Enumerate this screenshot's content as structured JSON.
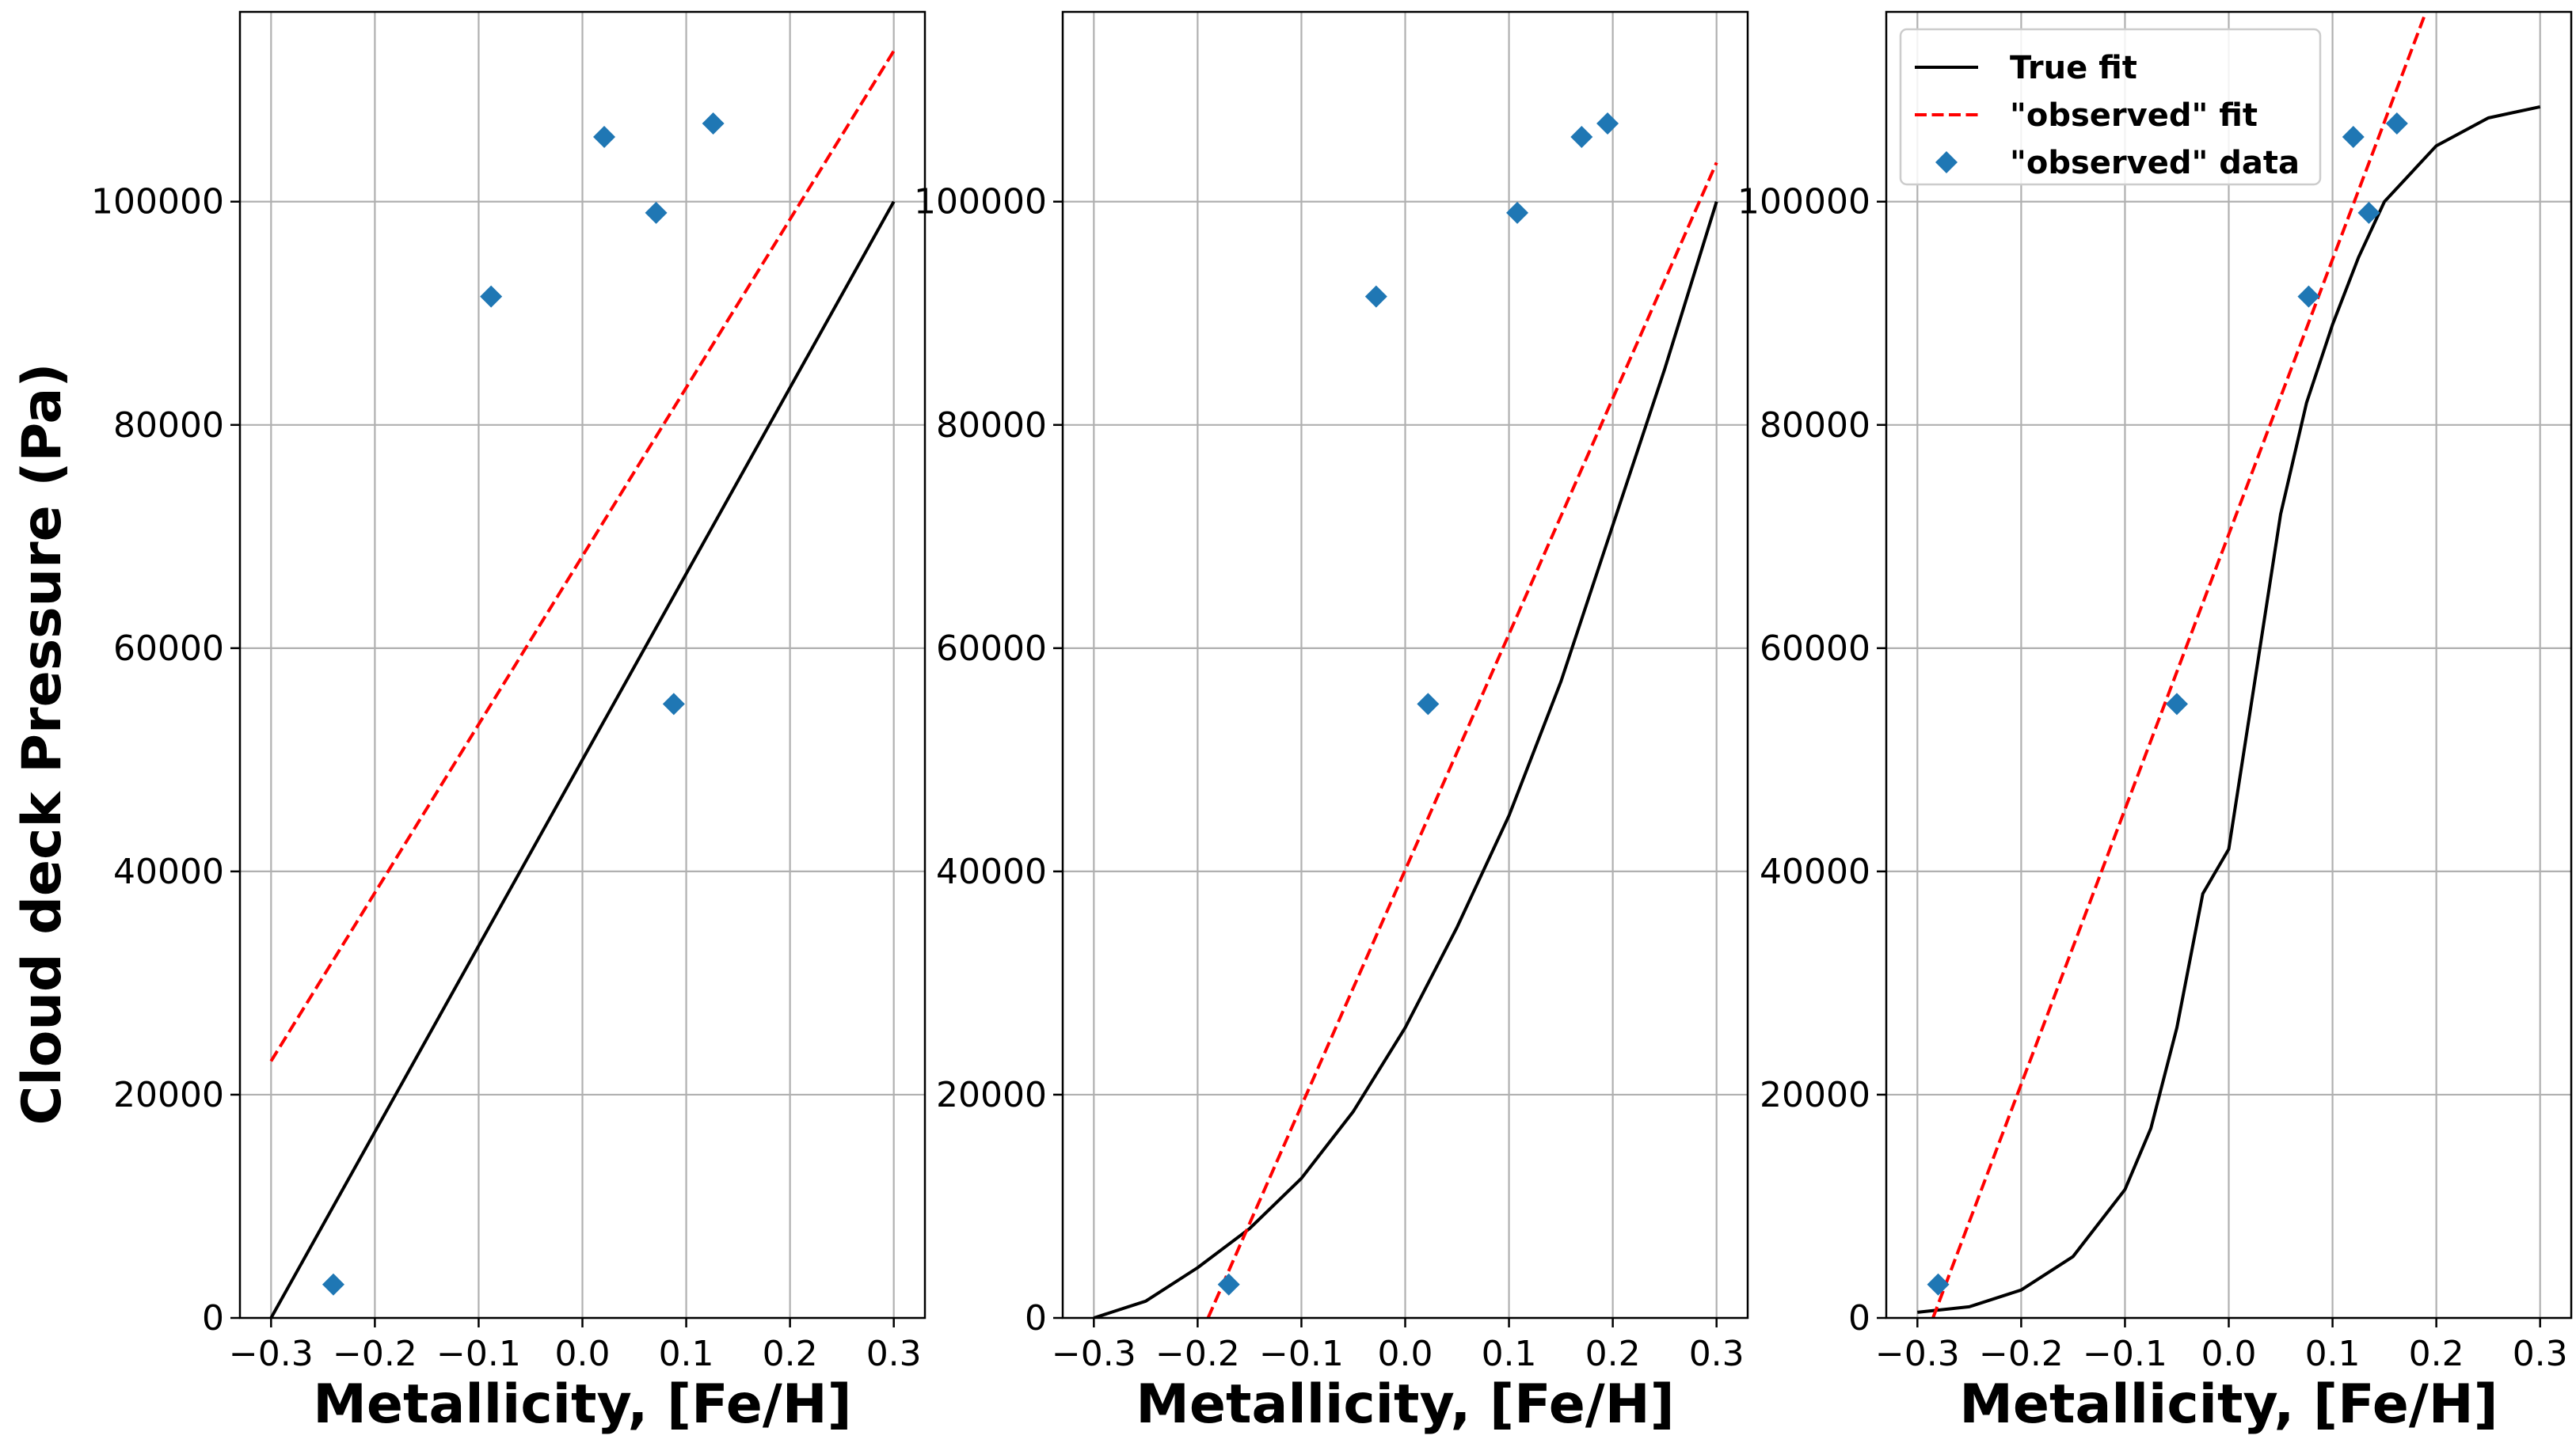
{
  "chart_data": [
    {
      "type": "line",
      "title": "",
      "xlabel": "Metallicity, [Fe/H]",
      "ylabel": "Cloud deck Pressure (Pa)",
      "xlim": [
        -0.33,
        0.33
      ],
      "ylim": [
        0,
        117000
      ],
      "xticks": [
        -0.3,
        -0.2,
        -0.1,
        0.0,
        0.1,
        0.2,
        0.3
      ],
      "xtick_labels": [
        "−0.3",
        "−0.2",
        "−0.1",
        "0.0",
        "0.1",
        "0.2",
        "0.3"
      ],
      "yticks": [
        0,
        20000,
        40000,
        60000,
        80000,
        100000
      ],
      "ytick_labels": [
        "0",
        "20000",
        "40000",
        "60000",
        "80000",
        "100000"
      ],
      "grid": true,
      "legend": null,
      "series": [
        {
          "kind": "line",
          "style": "solid",
          "color": "#000000",
          "x": [
            -0.3,
            0.3
          ],
          "y": [
            0,
            100000
          ]
        },
        {
          "kind": "line",
          "style": "dashed",
          "color": "#ff0000",
          "x": [
            -0.3,
            0.3
          ],
          "y": [
            23000,
            113500
          ]
        },
        {
          "kind": "scatter",
          "marker": "diamond",
          "color": "#1f77b4",
          "x": [
            -0.24,
            -0.088,
            0.021,
            0.071,
            0.088,
            0.126
          ],
          "y": [
            3000,
            91500,
            105800,
            99000,
            55000,
            107000
          ]
        }
      ]
    },
    {
      "type": "line",
      "title": "",
      "xlabel": "Metallicity, [Fe/H]",
      "ylabel": "",
      "xlim": [
        -0.33,
        0.33
      ],
      "ylim": [
        0,
        117000
      ],
      "xticks": [
        -0.3,
        -0.2,
        -0.1,
        0.0,
        0.1,
        0.2,
        0.3
      ],
      "xtick_labels": [
        "−0.3",
        "−0.2",
        "−0.1",
        "0.0",
        "0.1",
        "0.2",
        "0.3"
      ],
      "yticks": [
        0,
        20000,
        40000,
        60000,
        80000,
        100000
      ],
      "ytick_labels": [
        "0",
        "20000",
        "40000",
        "60000",
        "80000",
        "100000"
      ],
      "grid": true,
      "legend": null,
      "series": [
        {
          "kind": "line",
          "style": "solid",
          "color": "#000000",
          "x": [
            -0.3,
            -0.25,
            -0.2,
            -0.15,
            -0.1,
            -0.05,
            0.0,
            0.05,
            0.1,
            0.15,
            0.2,
            0.25,
            0.3
          ],
          "y": [
            0,
            1500,
            4500,
            8000,
            12500,
            18500,
            26000,
            35000,
            45000,
            57000,
            71000,
            85000,
            100000
          ]
        },
        {
          "kind": "line",
          "style": "dashed",
          "color": "#ff0000",
          "x": [
            -0.19,
            0.3
          ],
          "y": [
            0,
            103500
          ]
        },
        {
          "kind": "scatter",
          "marker": "diamond",
          "color": "#1f77b4",
          "x": [
            -0.17,
            -0.028,
            0.022,
            0.108,
            0.17,
            0.195
          ],
          "y": [
            3000,
            91500,
            55000,
            99000,
            105800,
            107000
          ]
        }
      ]
    },
    {
      "type": "line",
      "title": "",
      "xlabel": "Metallicity, [Fe/H]",
      "ylabel": "",
      "xlim": [
        -0.33,
        0.33
      ],
      "ylim": [
        0,
        117000
      ],
      "xticks": [
        -0.3,
        -0.2,
        -0.1,
        0.0,
        0.1,
        0.2,
        0.3
      ],
      "xtick_labels": [
        "−0.3",
        "−0.2",
        "−0.1",
        "0.0",
        "0.1",
        "0.2",
        "0.3"
      ],
      "yticks": [
        0,
        20000,
        40000,
        60000,
        80000,
        100000
      ],
      "ytick_labels": [
        "0",
        "20000",
        "40000",
        "60000",
        "80000",
        "100000"
      ],
      "grid": true,
      "legend": "upper-left",
      "series": [
        {
          "name": "True fit",
          "kind": "line",
          "style": "solid",
          "color": "#000000",
          "x": [
            -0.3,
            -0.25,
            -0.2,
            -0.15,
            -0.1,
            -0.075,
            -0.05,
            -0.025,
            0.0,
            0.025,
            0.05,
            0.075,
            0.1,
            0.125,
            0.15,
            0.2,
            0.25,
            0.3
          ],
          "y": [
            500,
            1000,
            2500,
            5500,
            11500,
            17000,
            26000,
            38000,
            42000,
            57000,
            72000,
            82000,
            89000,
            95000,
            100000,
            105000,
            107500,
            108500
          ]
        },
        {
          "name": "\"observed\" fit",
          "kind": "line",
          "style": "dashed",
          "color": "#ff0000",
          "x": [
            -0.285,
            0.19
          ],
          "y": [
            0,
            117000
          ]
        },
        {
          "name": "\"observed\" data",
          "kind": "scatter",
          "marker": "diamond",
          "color": "#1f77b4",
          "x": [
            -0.28,
            -0.05,
            0.077,
            0.12,
            0.135,
            0.162
          ],
          "y": [
            3000,
            55000,
            91500,
            105800,
            99000,
            107000
          ]
        }
      ]
    }
  ]
}
